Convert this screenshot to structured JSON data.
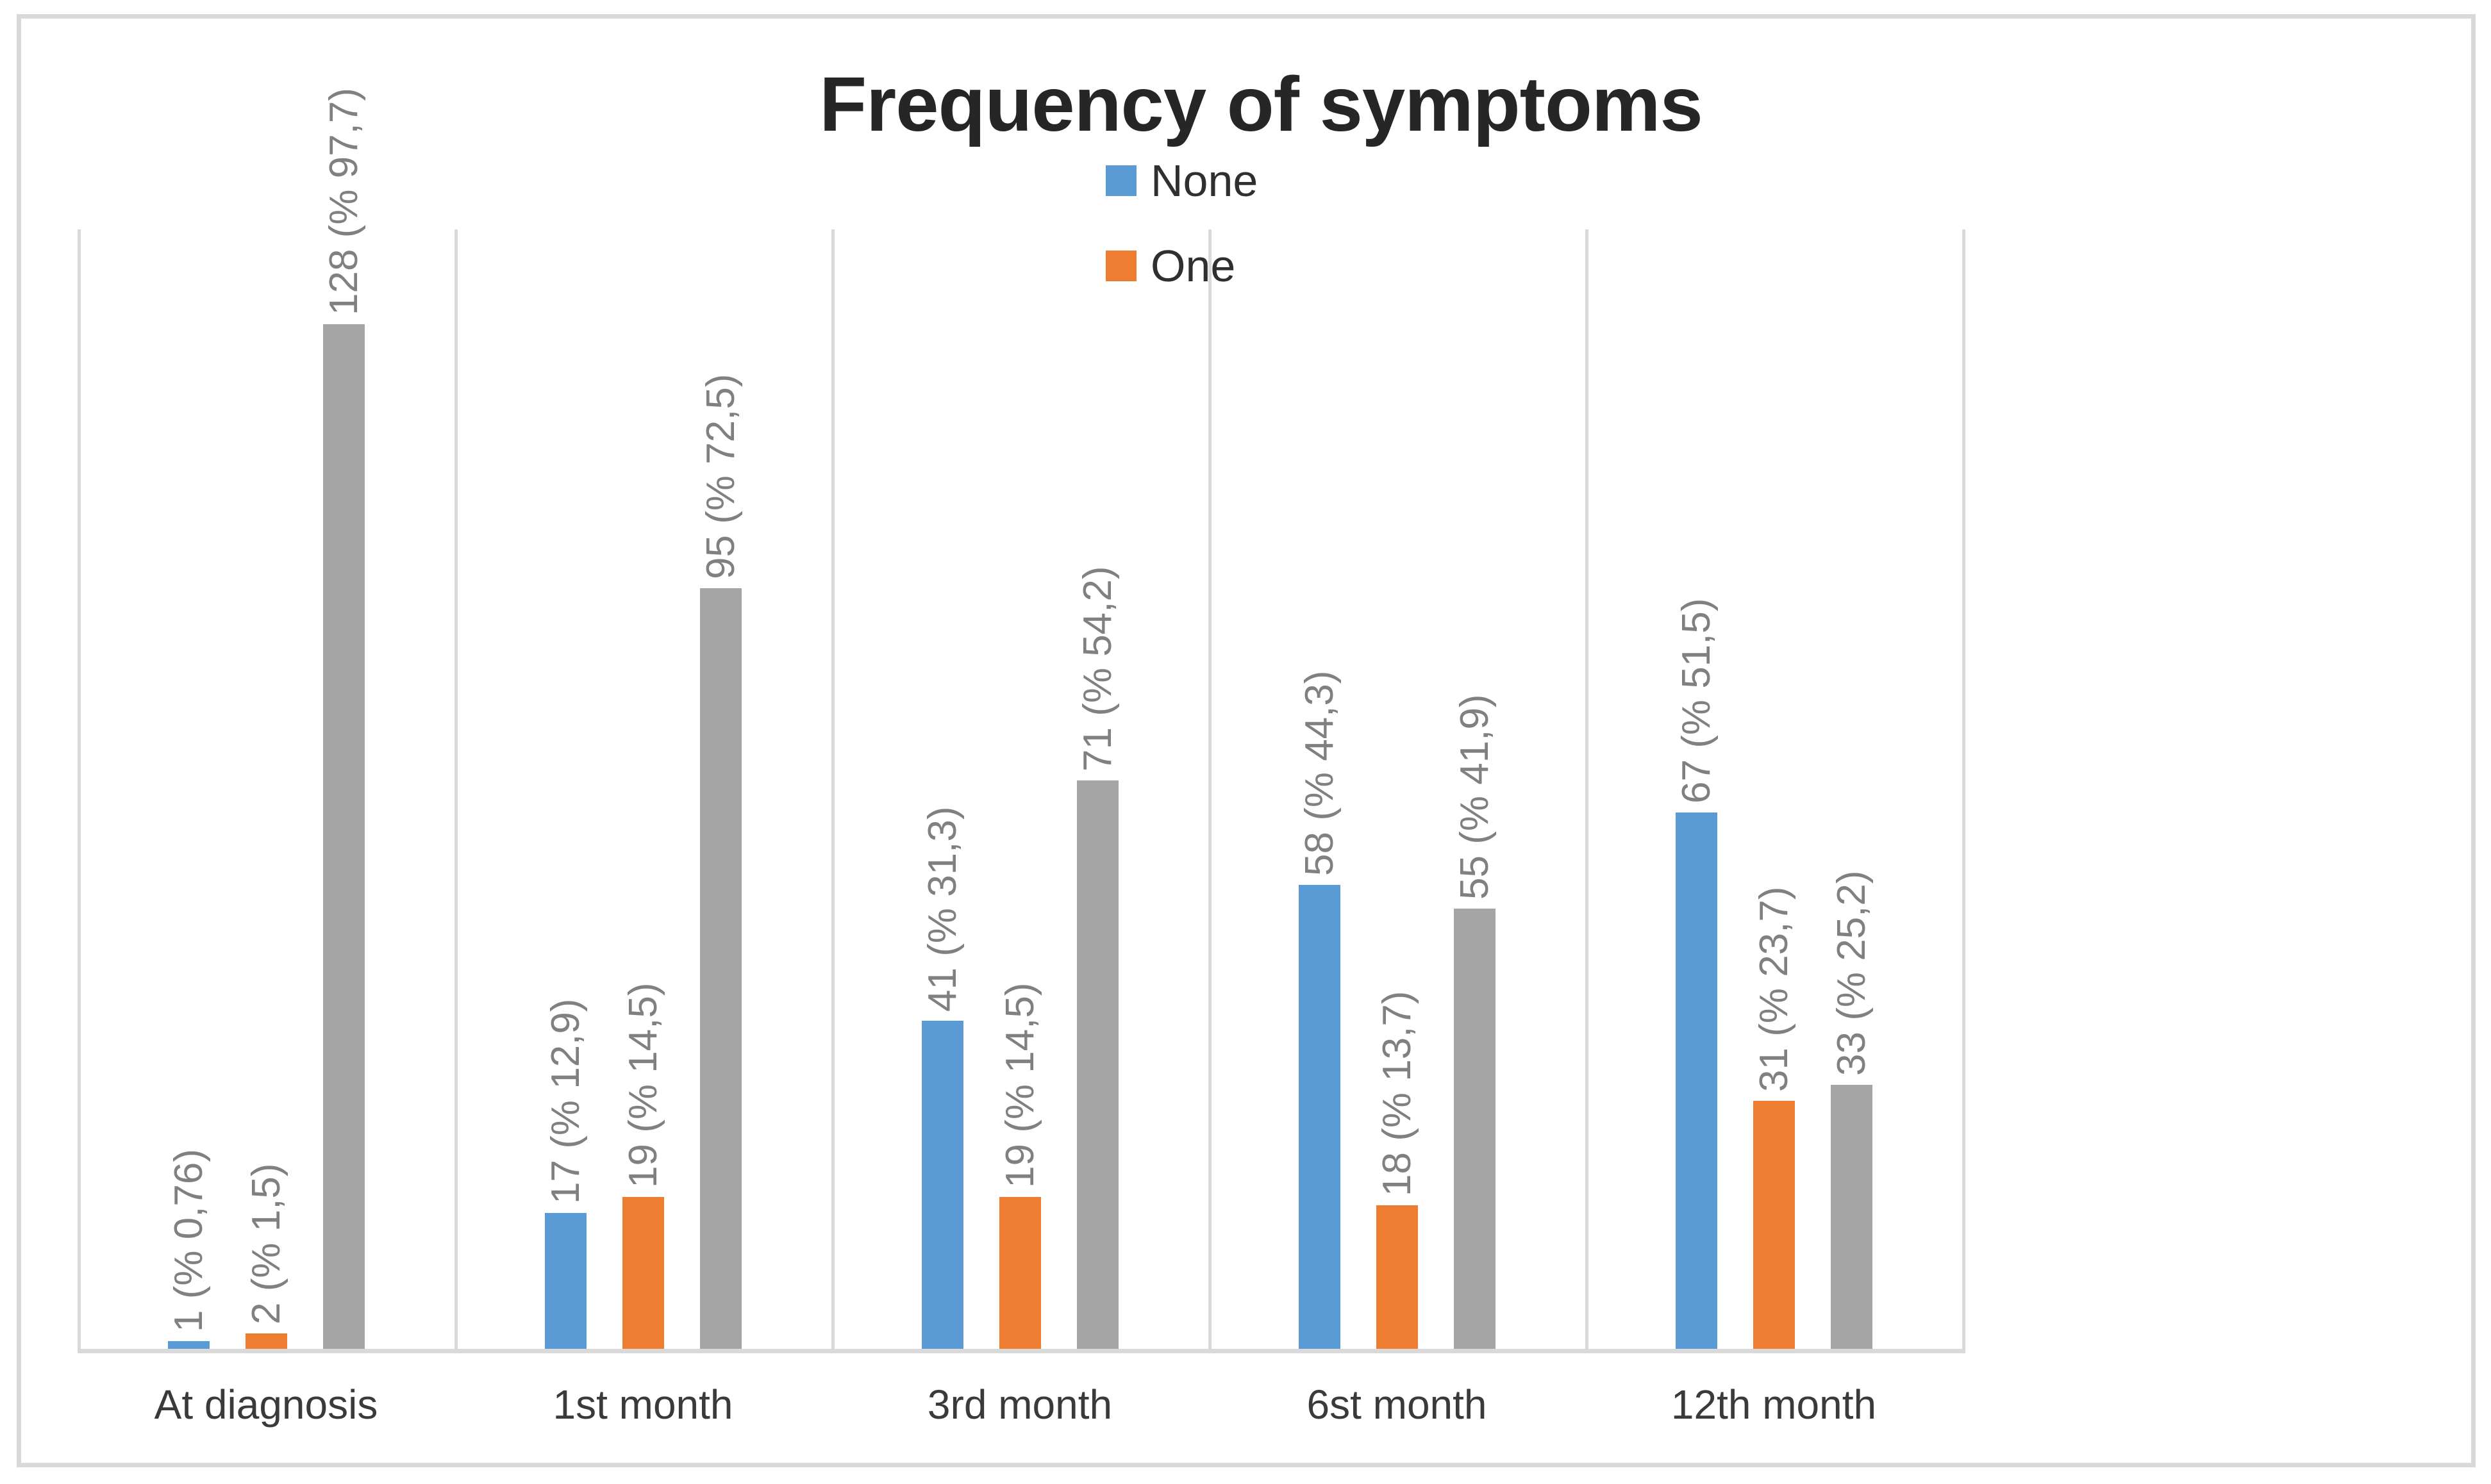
{
  "chart_data": {
    "type": "bar",
    "title": "Frequency of symptoms",
    "xlabel": "",
    "ylabel": "",
    "categories": [
      "At diagnosis",
      "1st month",
      "3rd month",
      "6st month",
      "12th month"
    ],
    "series": [
      {
        "name": "None",
        "legend_visible": true,
        "color": "#5B9BD5",
        "values": [
          1,
          17,
          41,
          58,
          67
        ],
        "data_labels": [
          "1 (% 0,76)",
          "17 (% 12,9)",
          "41 (% 31,3)",
          "58 (% 44,3)",
          "67 (% 51,5)"
        ]
      },
      {
        "name": "One",
        "legend_visible": true,
        "color": "#ED7D31",
        "values": [
          2,
          19,
          19,
          18,
          31
        ],
        "data_labels": [
          "2 (% 1,5)",
          "19 (% 14,5)",
          "19 (% 14,5)",
          "18 (% 13,7)",
          "31 (% 23,7)"
        ]
      },
      {
        "name": "",
        "legend_visible": false,
        "color": "#A5A5A5",
        "values": [
          128,
          95,
          71,
          55,
          33
        ],
        "data_labels": [
          "128 (% 97,7)",
          "95 (% 72,5)",
          "71 (% 54,2)",
          "55 (% 41,9)",
          "33 (% 25,2)"
        ]
      }
    ],
    "ylim": [
      0,
      140
    ],
    "grid": "vertical category separators only, no horizontal gridlines, no y-axis labels",
    "legend_position": "top center, items stacked vertically",
    "data_label_rotation": -90,
    "colors": {
      "grid": "#D9D9D9",
      "axis": "#D9D9D9",
      "data_label": "#808080",
      "category_label": "#3A3A3A",
      "title": "#262626",
      "legend_text": "#2F2F2F",
      "frame_border": "#D9D9D9",
      "background": "#FFFFFF"
    }
  },
  "legend": {
    "items": [
      {
        "label": "None",
        "color": "#5B9BD5"
      },
      {
        "label": "One",
        "color": "#ED7D31"
      }
    ]
  }
}
